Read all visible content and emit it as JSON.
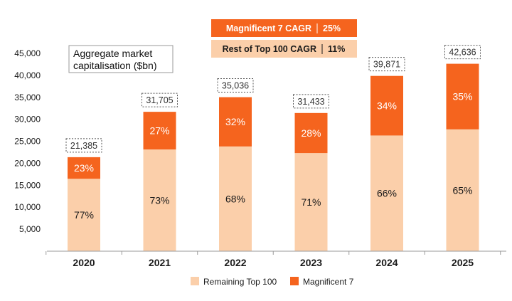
{
  "chart_data": {
    "type": "bar",
    "stacked": true,
    "title": "Aggregate market capitalisation ($bn)",
    "title_lines": [
      "Aggregate market",
      "capitalisation ($bn)"
    ],
    "categories": [
      "2020",
      "2021",
      "2022",
      "2023",
      "2024",
      "2025"
    ],
    "totals": [
      21385,
      31705,
      35036,
      31433,
      39871,
      42636
    ],
    "total_labels": [
      "21,385",
      "31,705",
      "35,036",
      "31,433",
      "39,871",
      "42,636"
    ],
    "series": [
      {
        "name": "Remaining Top 100",
        "color": "#fbcfaa",
        "share_pct": [
          77,
          73,
          68,
          71,
          66,
          65
        ],
        "share_labels": [
          "77%",
          "73%",
          "68%",
          "71%",
          "66%",
          "65%"
        ]
      },
      {
        "name": "Magnificent 7",
        "color": "#f5641e",
        "share_pct": [
          23,
          27,
          32,
          28,
          34,
          35
        ],
        "share_labels": [
          "23%",
          "27%",
          "32%",
          "28%",
          "34%",
          "35%"
        ]
      }
    ],
    "ylim": [
      0,
      45000
    ],
    "yticks": [
      5000,
      10000,
      15000,
      20000,
      25000,
      30000,
      35000,
      40000,
      45000
    ],
    "ytick_labels": [
      "5,000",
      "10,000",
      "15,000",
      "20,000",
      "25,000",
      "30,000",
      "35,000",
      "40,000",
      "45,000"
    ],
    "legend_position": "bottom",
    "annotations": [
      {
        "label": "Magnificent 7 CAGR",
        "value": "25%",
        "color": "#f5641e"
      },
      {
        "label": "Rest of Top 100 CAGR",
        "value": "11%",
        "color": "#fbcfaa"
      }
    ]
  }
}
